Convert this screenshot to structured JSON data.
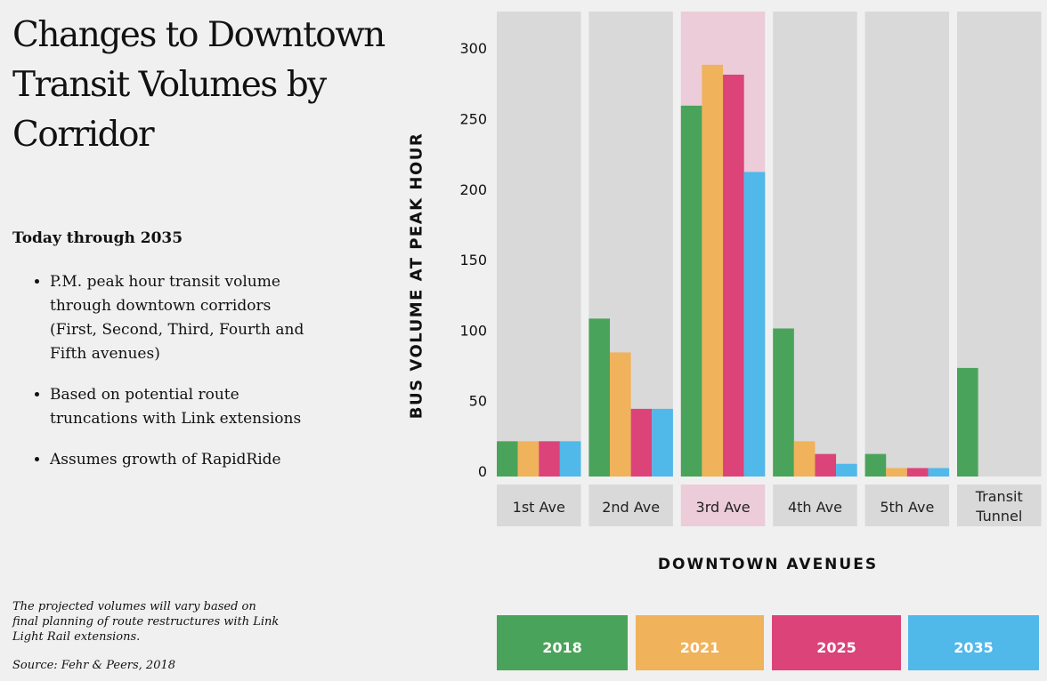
{
  "title": "Changes to Downtown Transit Volumes by Corridor",
  "subtitle": "Today through 2035",
  "bullets": [
    "P.M. peak hour transit volume through downtown corridors (First, Second, Third, Fourth and Fifth avenues)",
    "Based on potential route truncations with Link extensions",
    "Assumes growth of RapidRide"
  ],
  "note": "The projected volumes will vary based on final planning of route restructures with Link Light Rail extensions.",
  "source": "Source: Fehr & Peers, 2018",
  "chart_data": {
    "type": "bar",
    "xlabel": "DOWNTOWN AVENUES",
    "ylabel": "BUS VOLUME AT PEAK HOUR",
    "ylim": [
      0,
      330
    ],
    "yticks": [
      0,
      50,
      100,
      150,
      200,
      250,
      300
    ],
    "categories": [
      "1st Ave",
      "2nd Ave",
      "3rd Ave",
      "4th Ave",
      "5th Ave",
      "Transit Tunnel"
    ],
    "highlight": "3rd Ave",
    "legend_placement": "bottom",
    "series": [
      {
        "name": "2018",
        "color": "#4aa35a",
        "values": [
          25,
          112,
          263,
          105,
          16,
          77
        ]
      },
      {
        "name": "2021",
        "color": "#f0b25a",
        "values": [
          25,
          88,
          292,
          25,
          6,
          null
        ]
      },
      {
        "name": "2025",
        "color": "#db4379",
        "values": [
          25,
          48,
          285,
          16,
          6,
          null
        ]
      },
      {
        "name": "2035",
        "color": "#51b8ea",
        "values": [
          25,
          48,
          216,
          9,
          6,
          null
        ]
      }
    ]
  }
}
